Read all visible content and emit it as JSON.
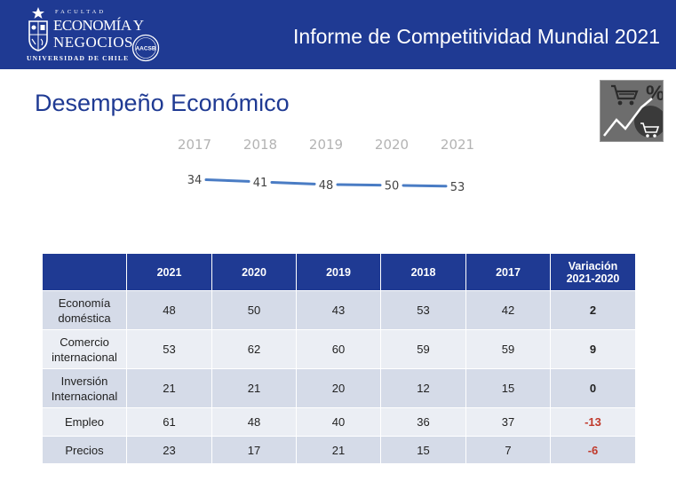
{
  "header": {
    "logo": {
      "faculty": "FACULTAD",
      "line1": "ECONOMÍA Y",
      "line2": "NEGOCIOS",
      "university": "UNIVERSIDAD DE CHILE",
      "badge": "AACSB"
    },
    "title": "Informe de Competitividad Mundial 2021"
  },
  "section_title": "Desempeño Económico",
  "icon": {
    "name": "shopping-cart-percent-trend-icon"
  },
  "chart_data": {
    "type": "line",
    "x": [
      "2017",
      "2018",
      "2019",
      "2020",
      "2021"
    ],
    "series": [
      {
        "values": [
          34,
          41,
          48,
          50,
          53
        ]
      }
    ],
    "y_inverted": true,
    "line_color": "#4a7cc4"
  },
  "table": {
    "headers": [
      "",
      "2021",
      "2020",
      "2019",
      "2018",
      "2017",
      "Variación",
      "2021-2020"
    ],
    "rows": [
      {
        "label1": "Economía",
        "label2": "doméstica",
        "values": [
          "48",
          "50",
          "43",
          "53",
          "42"
        ],
        "variation": "2"
      },
      {
        "label1": "Comercio",
        "label2": "internacional",
        "values": [
          "53",
          "62",
          "60",
          "59",
          "59"
        ],
        "variation": "9"
      },
      {
        "label1": "Inversión",
        "label2": "Internacional",
        "values": [
          "21",
          "21",
          "20",
          "12",
          "15"
        ],
        "variation": "0"
      },
      {
        "label1": "Empleo",
        "label2": "",
        "values": [
          "61",
          "48",
          "40",
          "36",
          "37"
        ],
        "variation": "-13"
      },
      {
        "label1": "Precios",
        "label2": "",
        "values": [
          "23",
          "17",
          "21",
          "15",
          "7"
        ],
        "variation": "-6"
      }
    ]
  },
  "colors": {
    "brand_blue": "#1f3a93",
    "row_dark": "#d5dbe8",
    "row_light": "#ebeef4",
    "negative": "#c0392b"
  }
}
